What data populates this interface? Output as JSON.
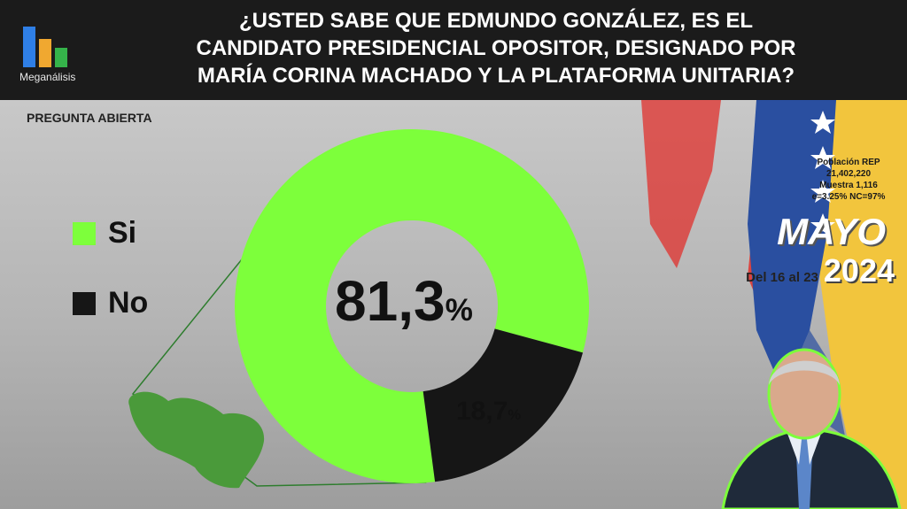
{
  "header": {
    "brand": "Meganálisis",
    "title": "¿USTED SABE QUE EDMUNDO GONZÁLEZ, ES EL\nCANDIDATO PRESIDENCIAL OPOSITOR, DESIGNADO POR\nMARÍA CORINA MACHADO Y LA PLATAFORMA UNITARIA?"
  },
  "question_type": "PREGUNTA ABIERTA",
  "stats": {
    "line1": "Población REP",
    "line2": "21,402,220",
    "line3": "Muestra 1,116",
    "line4": "e=3.25%  NC=97%"
  },
  "period": {
    "month": "MAYO",
    "range": "Del 16 al 23",
    "year": "2024"
  },
  "colors": {
    "yes": "#7dff3b",
    "no": "#161616"
  },
  "chart_data": {
    "type": "pie",
    "categories": [
      "Si",
      "No"
    ],
    "values": [
      81.3,
      18.7
    ],
    "value_labels": [
      "81,3",
      "18,7"
    ],
    "unit": "%",
    "donut": true
  }
}
